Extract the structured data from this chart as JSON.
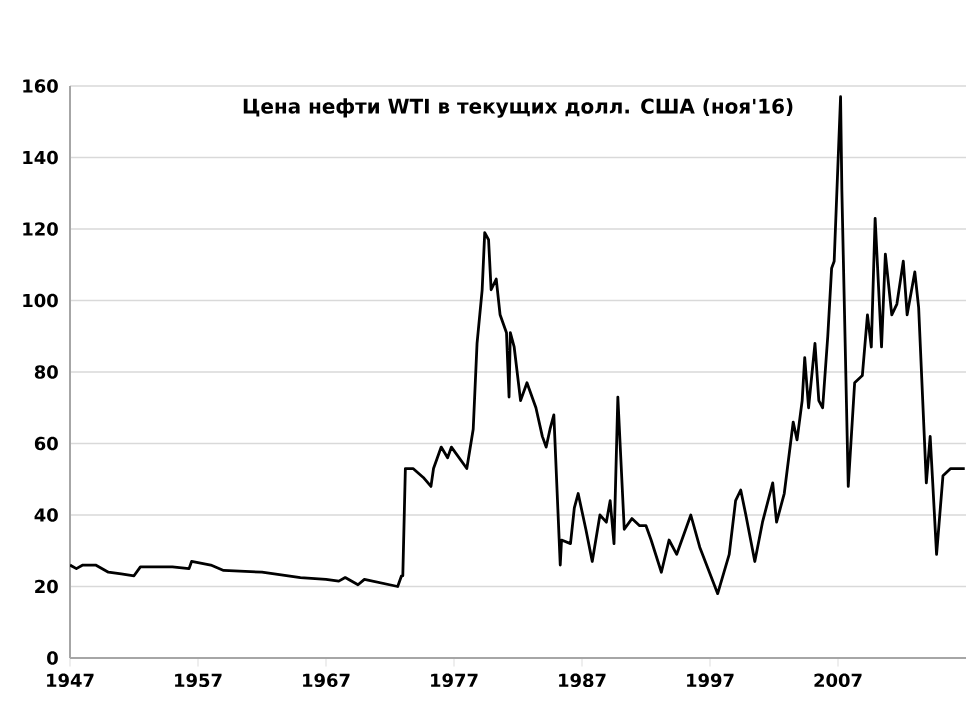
{
  "chart_data": {
    "type": "line",
    "title": "Цена нефти WTI в текущих долл. США (ноя'16)",
    "x": [
      1947,
      1947.5,
      1948,
      1949,
      1950,
      1951,
      1952,
      1952.5,
      1953,
      1955,
      1956.3,
      1956.5,
      1958,
      1959,
      1962,
      1965,
      1967,
      1968,
      1968.5,
      1969.5,
      1970,
      1972.6,
      1972.9,
      1973.0,
      1973.2,
      1973.8,
      1974.6,
      1975.2,
      1975.4,
      1976,
      1976.5,
      1976.8,
      1978.0,
      1978.5,
      1978.8,
      1979.2,
      1979.4,
      1979.7,
      1979.9,
      1980.3,
      1980.6,
      1981.1,
      1981.3,
      1981.4,
      1981.7,
      1982.2,
      1982.7,
      1983.4,
      1983.9,
      1984.2,
      1984.5,
      1984.8,
      1985.3,
      1985.4,
      1986.1,
      1986.4,
      1986.7,
      1987.3,
      1987.8,
      1988.4,
      1988.9,
      1989.2,
      1989.5,
      1989.8,
      1990.3,
      1990.9,
      1991.5,
      1992.0,
      1992.4,
      1993.2,
      1993.8,
      1994.4,
      1995.5,
      1996.2,
      1997.6,
      1998.5,
      1999.0,
      1999.4,
      1999.8,
      2000.5,
      2001.1,
      2001.9,
      2002.2,
      2002.8,
      2003.5,
      2003.8,
      2004.2,
      2004.4,
      2004.7,
      2005.2,
      2005.5,
      2005.8,
      2006.2,
      2006.5,
      2006.7,
      2007.2,
      2007.3,
      2007.8,
      2008.3,
      2008.9,
      2009.3,
      2009.6,
      2009.9,
      2010.4,
      2010.7,
      2011.2,
      2011.6,
      2012.1,
      2012.4,
      2013.0,
      2013.3,
      2013.9,
      2014.2,
      2014.4,
      2014.7,
      2015.2,
      2015.8,
      2016.9
    ],
    "values": [
      26,
      25,
      26,
      26,
      24,
      23.5,
      23,
      25.5,
      25.5,
      25.5,
      25,
      27,
      26,
      24.5,
      24,
      22.5,
      22,
      21.5,
      22.5,
      20.5,
      22,
      20,
      23,
      23,
      53,
      53,
      50.5,
      48,
      53,
      59,
      56,
      59,
      53,
      64,
      88,
      103,
      119,
      117,
      103,
      106,
      96,
      91,
      73,
      91,
      87,
      72,
      77,
      70,
      62,
      59,
      64,
      68,
      26,
      33,
      32,
      42,
      46,
      36,
      27,
      40,
      38,
      44,
      32,
      73,
      36,
      39,
      37,
      37,
      33,
      24,
      33,
      29,
      40,
      31,
      18,
      29,
      44,
      47,
      40,
      27,
      38,
      49,
      38,
      46,
      66,
      61,
      72,
      84,
      70,
      88,
      72,
      70,
      90,
      109,
      111,
      157,
      131,
      48,
      77,
      79,
      96,
      87,
      123,
      87,
      113,
      96,
      99,
      111,
      96,
      108,
      98,
      49,
      62,
      49,
      29,
      51,
      53,
      53
    ],
    "color": "#000000",
    "xlim": [
      1947,
      2017
    ],
    "ylim": [
      0,
      160
    ],
    "xticks": [
      1947,
      1957,
      1967,
      1977,
      1987,
      1997,
      2007
    ],
    "yticks": [
      0,
      20,
      40,
      60,
      80,
      100,
      120,
      140,
      160
    ],
    "grid": "y",
    "marker": "none",
    "line_style": "solid"
  }
}
